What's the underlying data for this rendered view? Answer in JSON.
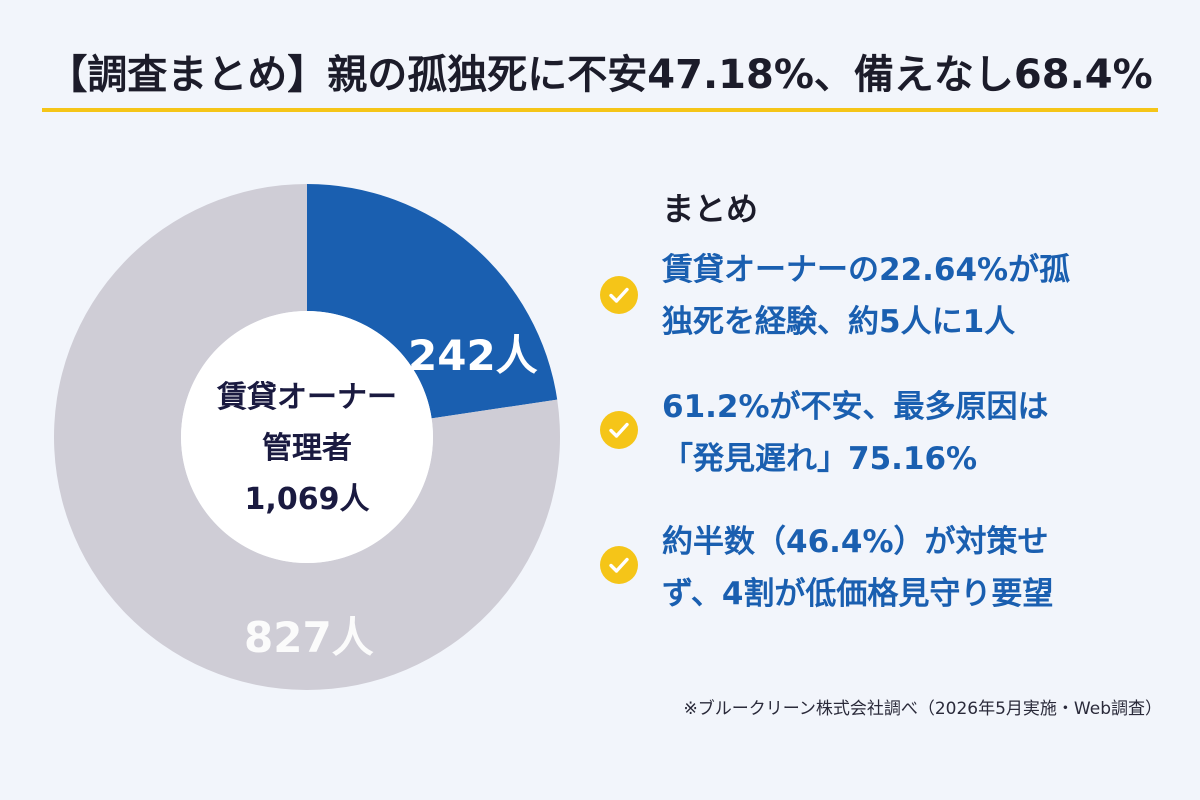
{
  "title": "【調査まとめ】親の孤独死に不安47.18%、備えなし68.4%",
  "colors": {
    "accent": "#f5c518",
    "blue_segment": "#1a5fb0",
    "gray_segment": "#cfcdd6",
    "background": "#f2f5fb"
  },
  "chart_data": {
    "type": "pie",
    "title": "",
    "center_label": [
      "賃貸オーナー",
      "管理者",
      "1,069人"
    ],
    "categories": [
      "242人",
      "827人"
    ],
    "values": [
      242,
      827
    ],
    "colors": [
      "#1a5fb0",
      "#cfcdd6"
    ],
    "total": 1069
  },
  "summary": {
    "heading": "まとめ",
    "points": [
      {
        "lines": [
          "賃貸オーナーの22.64%が孤",
          "独死を経験、約5人に1人"
        ],
        "icon": "check-icon"
      },
      {
        "lines": [
          "61.2%が不安、最多原因は",
          "「発見遅れ」75.16%"
        ],
        "icon": "check-icon"
      },
      {
        "lines": [
          "約半数（46.4%）が対策せ",
          "ず、4割が低価格見守り要望"
        ],
        "icon": "check-icon"
      }
    ]
  },
  "footnote": "※ブルークリーン株式会社調べ（2026年5月実施・Web調査）"
}
